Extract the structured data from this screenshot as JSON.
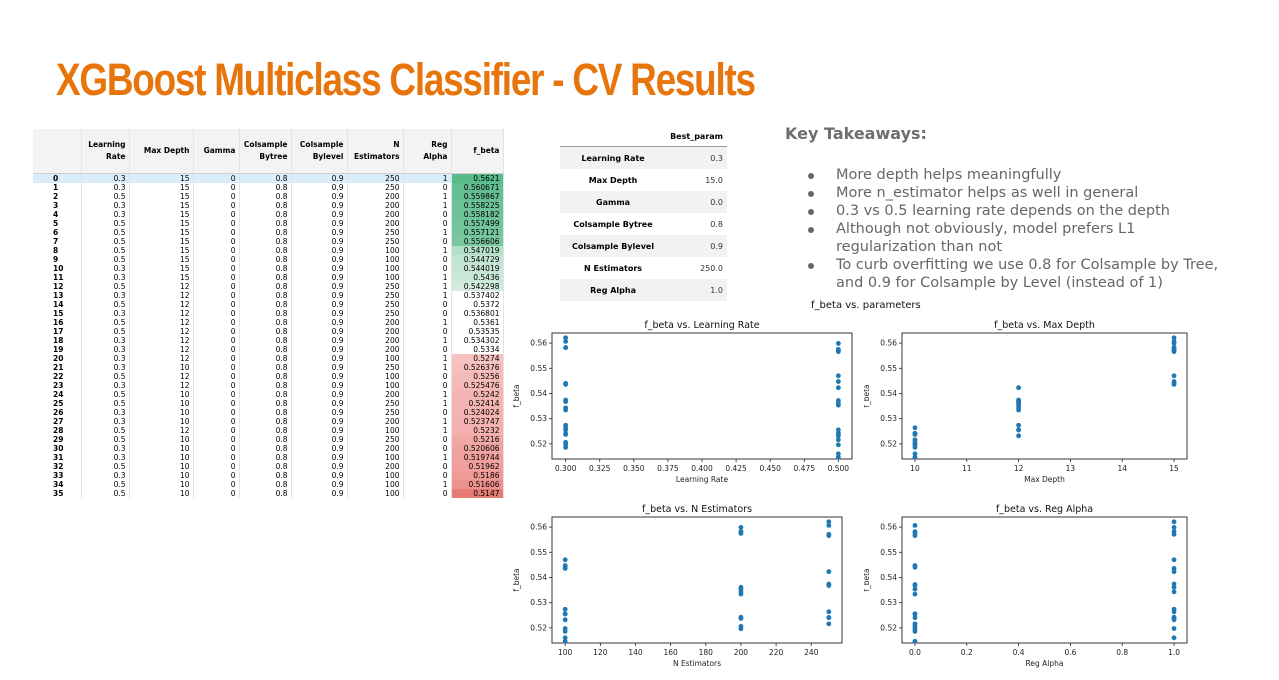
{
  "title": "XGBoost Multiclass Classifier - CV Results",
  "cv_table": {
    "headers": [
      "",
      "Learning Rate",
      "Max Depth",
      "Gamma",
      "Colsample Bytree",
      "Colsample Bylevel",
      "N Estimators",
      "Reg Alpha",
      "f_beta"
    ],
    "rows": [
      [
        "0",
        "0.3",
        "15",
        "0",
        "0.8",
        "0.9",
        "250",
        "1",
        "0.5621"
      ],
      [
        "1",
        "0.3",
        "15",
        "0",
        "0.8",
        "0.9",
        "250",
        "0",
        "0.560671"
      ],
      [
        "2",
        "0.5",
        "15",
        "0",
        "0.8",
        "0.9",
        "200",
        "1",
        "0.559867"
      ],
      [
        "3",
        "0.3",
        "15",
        "0",
        "0.8",
        "0.9",
        "200",
        "1",
        "0.558225"
      ],
      [
        "4",
        "0.3",
        "15",
        "0",
        "0.8",
        "0.9",
        "200",
        "0",
        "0.558182"
      ],
      [
        "5",
        "0.5",
        "15",
        "0",
        "0.8",
        "0.9",
        "200",
        "0",
        "0.557499"
      ],
      [
        "6",
        "0.5",
        "15",
        "0",
        "0.8",
        "0.9",
        "250",
        "1",
        "0.557121"
      ],
      [
        "7",
        "0.5",
        "15",
        "0",
        "0.8",
        "0.9",
        "250",
        "0",
        "0.556606"
      ],
      [
        "8",
        "0.5",
        "15",
        "0",
        "0.8",
        "0.9",
        "100",
        "1",
        "0.547019"
      ],
      [
        "9",
        "0.5",
        "15",
        "0",
        "0.8",
        "0.9",
        "100",
        "0",
        "0.544729"
      ],
      [
        "10",
        "0.3",
        "15",
        "0",
        "0.8",
        "0.9",
        "100",
        "0",
        "0.544019"
      ],
      [
        "11",
        "0.3",
        "15",
        "0",
        "0.8",
        "0.9",
        "100",
        "1",
        "0.5436"
      ],
      [
        "12",
        "0.5",
        "12",
        "0",
        "0.8",
        "0.9",
        "250",
        "1",
        "0.542298"
      ],
      [
        "13",
        "0.3",
        "12",
        "0",
        "0.8",
        "0.9",
        "250",
        "1",
        "0.537402"
      ],
      [
        "14",
        "0.5",
        "12",
        "0",
        "0.8",
        "0.9",
        "250",
        "0",
        "0.5372"
      ],
      [
        "15",
        "0.3",
        "12",
        "0",
        "0.8",
        "0.9",
        "250",
        "0",
        "0.536801"
      ],
      [
        "16",
        "0.5",
        "12",
        "0",
        "0.8",
        "0.9",
        "200",
        "1",
        "0.5361"
      ],
      [
        "17",
        "0.5",
        "12",
        "0",
        "0.8",
        "0.9",
        "200",
        "0",
        "0.53535"
      ],
      [
        "18",
        "0.3",
        "12",
        "0",
        "0.8",
        "0.9",
        "200",
        "1",
        "0.534302"
      ],
      [
        "19",
        "0.3",
        "12",
        "0",
        "0.8",
        "0.9",
        "200",
        "0",
        "0.5334"
      ],
      [
        "20",
        "0.3",
        "12",
        "0",
        "0.8",
        "0.9",
        "100",
        "1",
        "0.5274"
      ],
      [
        "21",
        "0.3",
        "10",
        "0",
        "0.8",
        "0.9",
        "250",
        "1",
        "0.526376"
      ],
      [
        "22",
        "0.5",
        "12",
        "0",
        "0.8",
        "0.9",
        "100",
        "0",
        "0.5256"
      ],
      [
        "23",
        "0.3",
        "12",
        "0",
        "0.8",
        "0.9",
        "100",
        "0",
        "0.525476"
      ],
      [
        "24",
        "0.5",
        "10",
        "0",
        "0.8",
        "0.9",
        "200",
        "1",
        "0.5242"
      ],
      [
        "25",
        "0.5",
        "10",
        "0",
        "0.8",
        "0.9",
        "250",
        "1",
        "0.52414"
      ],
      [
        "26",
        "0.3",
        "10",
        "0",
        "0.8",
        "0.9",
        "250",
        "0",
        "0.524024"
      ],
      [
        "27",
        "0.3",
        "10",
        "0",
        "0.8",
        "0.9",
        "200",
        "1",
        "0.523747"
      ],
      [
        "28",
        "0.5",
        "12",
        "0",
        "0.8",
        "0.9",
        "100",
        "1",
        "0.5232"
      ],
      [
        "29",
        "0.5",
        "10",
        "0",
        "0.8",
        "0.9",
        "250",
        "0",
        "0.5216"
      ],
      [
        "30",
        "0.3",
        "10",
        "0",
        "0.8",
        "0.9",
        "200",
        "0",
        "0.520606"
      ],
      [
        "31",
        "0.3",
        "10",
        "0",
        "0.8",
        "0.9",
        "100",
        "1",
        "0.519744"
      ],
      [
        "32",
        "0.5",
        "10",
        "0",
        "0.8",
        "0.9",
        "200",
        "0",
        "0.51962"
      ],
      [
        "33",
        "0.3",
        "10",
        "0",
        "0.8",
        "0.9",
        "100",
        "0",
        "0.5186"
      ],
      [
        "34",
        "0.5",
        "10",
        "0",
        "0.8",
        "0.9",
        "100",
        "1",
        "0.51606"
      ],
      [
        "35",
        "0.5",
        "10",
        "0",
        "0.8",
        "0.9",
        "100",
        "0",
        "0.5147"
      ]
    ],
    "fbeta_colors": [
      "#57bb8a",
      "#63be91",
      "#66bf93",
      "#6dc298",
      "#6ec298",
      "#72c49b",
      "#75c59d",
      "#7ac7a0",
      "#b3dec8",
      "#c2e4d2",
      "#c6e6d5",
      "#cbe8d8",
      "#d3ebde",
      "#ffffff",
      "#ffffff",
      "#ffffff",
      "#ffffff",
      "#ffffff",
      "#ffffff",
      "#ffffff",
      "#f7c3c1",
      "#f6bfbc",
      "#f5bbb9",
      "#f5bab7",
      "#f4b5b2",
      "#f4b4b2",
      "#f4b3b1",
      "#f3b2b0",
      "#f3b0ae",
      "#f1a9a6",
      "#f0a4a1",
      "#f0a19e",
      "#ef9f9c",
      "#ee9a97",
      "#ec918e",
      "#e67c73"
    ]
  },
  "best_params": {
    "header": "Best_param",
    "rows": [
      [
        "Learning Rate",
        "0.3"
      ],
      [
        "Max Depth",
        "15.0"
      ],
      [
        "Gamma",
        "0.0"
      ],
      [
        "Colsample Bytree",
        "0.8"
      ],
      [
        "Colsample Bylevel",
        "0.9"
      ],
      [
        "N Estimators",
        "250.0"
      ],
      [
        "Reg Alpha",
        "1.0"
      ]
    ]
  },
  "takeaways": {
    "title": "Key Takeaways:",
    "items": [
      "More depth helps meaningfully",
      "More n_estimator helps as well in general",
      "0.3 vs 0.5 learning rate depends on the depth",
      "Although not obviously, model prefers L1 regularization than not",
      "To curb overfitting we use 0.8 for Colsample by Tree, and 0.9 for Colsample by Level (instead of 1)"
    ]
  },
  "plots_title": "f_beta vs. parameters",
  "colors": {
    "title": "#e8740c",
    "points": "#1f77b4"
  },
  "chart_data": [
    {
      "type": "scatter",
      "title": "f_beta vs. Learning Rate",
      "xlabel": "Learning Rate",
      "ylabel": "f_beta",
      "xlim": [
        0.29,
        0.51
      ],
      "ylim": [
        0.514,
        0.564
      ],
      "xticks": [
        0.3,
        0.325,
        0.35,
        0.375,
        0.4,
        0.425,
        0.45,
        0.475,
        0.5
      ],
      "xticklabels": [
        "0.300",
        "0.325",
        "0.350",
        "0.375",
        "0.400",
        "0.425",
        "0.450",
        "0.475",
        "0.500"
      ],
      "yticks": [
        0.52,
        0.53,
        0.54,
        0.55,
        0.56
      ],
      "yticklabels": [
        "0.52",
        "0.53",
        "0.54",
        "0.55",
        "0.56"
      ],
      "x": [
        0.3,
        0.3,
        0.5,
        0.3,
        0.3,
        0.5,
        0.5,
        0.5,
        0.5,
        0.5,
        0.3,
        0.3,
        0.5,
        0.3,
        0.5,
        0.3,
        0.5,
        0.5,
        0.3,
        0.3,
        0.3,
        0.3,
        0.5,
        0.3,
        0.5,
        0.5,
        0.3,
        0.3,
        0.5,
        0.5,
        0.3,
        0.3,
        0.5,
        0.3,
        0.5,
        0.5
      ],
      "y": [
        0.5621,
        0.560671,
        0.559867,
        0.558225,
        0.558182,
        0.557499,
        0.557121,
        0.556606,
        0.547019,
        0.544729,
        0.544019,
        0.5436,
        0.542298,
        0.537402,
        0.5372,
        0.536801,
        0.5361,
        0.53535,
        0.534302,
        0.5334,
        0.5274,
        0.526376,
        0.5256,
        0.525476,
        0.5242,
        0.52414,
        0.524024,
        0.523747,
        0.5232,
        0.5216,
        0.520606,
        0.519744,
        0.51962,
        0.5186,
        0.51606,
        0.5147
      ]
    },
    {
      "type": "scatter",
      "title": "f_beta vs. Max Depth",
      "xlabel": "Max Depth",
      "ylabel": "f_beta",
      "xlim": [
        9.75,
        15.25
      ],
      "ylim": [
        0.514,
        0.564
      ],
      "xticks": [
        10,
        11,
        12,
        13,
        14,
        15
      ],
      "xticklabels": [
        "10",
        "11",
        "12",
        "13",
        "14",
        "15"
      ],
      "yticks": [
        0.52,
        0.53,
        0.54,
        0.55,
        0.56
      ],
      "yticklabels": [
        "0.52",
        "0.53",
        "0.54",
        "0.55",
        "0.56"
      ],
      "x": [
        15,
        15,
        15,
        15,
        15,
        15,
        15,
        15,
        15,
        15,
        15,
        15,
        12,
        12,
        12,
        12,
        12,
        12,
        12,
        12,
        12,
        10,
        12,
        12,
        10,
        10,
        10,
        10,
        12,
        10,
        10,
        10,
        10,
        10,
        10,
        10
      ],
      "y": [
        0.5621,
        0.560671,
        0.559867,
        0.558225,
        0.558182,
        0.557499,
        0.557121,
        0.556606,
        0.547019,
        0.544729,
        0.544019,
        0.5436,
        0.542298,
        0.537402,
        0.5372,
        0.536801,
        0.5361,
        0.53535,
        0.534302,
        0.5334,
        0.5274,
        0.526376,
        0.5256,
        0.525476,
        0.5242,
        0.52414,
        0.524024,
        0.523747,
        0.5232,
        0.5216,
        0.520606,
        0.519744,
        0.51962,
        0.5186,
        0.51606,
        0.5147
      ]
    },
    {
      "type": "scatter",
      "title": "f_beta vs. N Estimators",
      "xlabel": "N Estimators",
      "ylabel": "f_beta",
      "xlim": [
        92.5,
        257.5
      ],
      "ylim": [
        0.514,
        0.564
      ],
      "xticks": [
        100,
        120,
        140,
        160,
        180,
        200,
        220,
        240
      ],
      "xticklabels": [
        "100",
        "120",
        "140",
        "160",
        "180",
        "200",
        "220",
        "240"
      ],
      "yticks": [
        0.52,
        0.53,
        0.54,
        0.55,
        0.56
      ],
      "yticklabels": [
        "0.52",
        "0.53",
        "0.54",
        "0.55",
        "0.56"
      ],
      "x": [
        250,
        250,
        200,
        200,
        200,
        200,
        250,
        250,
        100,
        100,
        100,
        100,
        250,
        250,
        250,
        250,
        200,
        200,
        200,
        200,
        100,
        250,
        100,
        100,
        200,
        250,
        250,
        200,
        100,
        250,
        200,
        100,
        200,
        100,
        100,
        100
      ],
      "y": [
        0.5621,
        0.560671,
        0.559867,
        0.558225,
        0.558182,
        0.557499,
        0.557121,
        0.556606,
        0.547019,
        0.544729,
        0.544019,
        0.5436,
        0.542298,
        0.537402,
        0.5372,
        0.536801,
        0.5361,
        0.53535,
        0.534302,
        0.5334,
        0.5274,
        0.526376,
        0.5256,
        0.525476,
        0.5242,
        0.52414,
        0.524024,
        0.523747,
        0.5232,
        0.5216,
        0.520606,
        0.519744,
        0.51962,
        0.5186,
        0.51606,
        0.5147
      ]
    },
    {
      "type": "scatter",
      "title": "f_beta vs. Reg Alpha",
      "xlabel": "Reg Alpha",
      "ylabel": "f_beta",
      "xlim": [
        -0.05,
        1.05
      ],
      "ylim": [
        0.514,
        0.564
      ],
      "xticks": [
        0.0,
        0.2,
        0.4,
        0.6,
        0.8,
        1.0
      ],
      "xticklabels": [
        "0.0",
        "0.2",
        "0.4",
        "0.6",
        "0.8",
        "1.0"
      ],
      "yticks": [
        0.52,
        0.53,
        0.54,
        0.55,
        0.56
      ],
      "yticklabels": [
        "0.52",
        "0.53",
        "0.54",
        "0.55",
        "0.56"
      ],
      "x": [
        1,
        0,
        1,
        1,
        0,
        0,
        1,
        0,
        1,
        0,
        0,
        1,
        1,
        1,
        0,
        0,
        1,
        0,
        1,
        0,
        1,
        1,
        0,
        0,
        1,
        1,
        0,
        1,
        1,
        0,
        0,
        1,
        0,
        0,
        1,
        0
      ],
      "y": [
        0.5621,
        0.560671,
        0.559867,
        0.558225,
        0.558182,
        0.557499,
        0.557121,
        0.556606,
        0.547019,
        0.544729,
        0.544019,
        0.5436,
        0.542298,
        0.537402,
        0.5372,
        0.536801,
        0.5361,
        0.53535,
        0.534302,
        0.5334,
        0.5274,
        0.526376,
        0.5256,
        0.525476,
        0.5242,
        0.52414,
        0.524024,
        0.523747,
        0.5232,
        0.5216,
        0.520606,
        0.519744,
        0.51962,
        0.5186,
        0.51606,
        0.5147
      ]
    }
  ]
}
